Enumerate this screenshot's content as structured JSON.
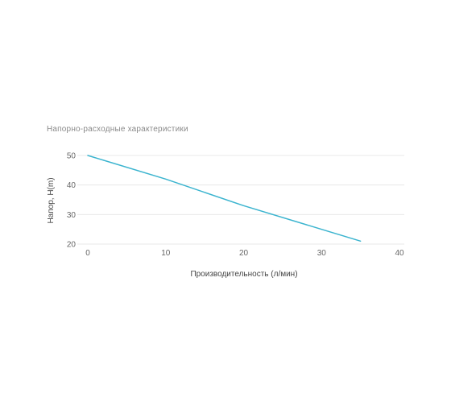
{
  "chart_data": {
    "type": "line",
    "title": "Напорно-расходные характеристики",
    "xlabel": "Производительность (л/мин)",
    "ylabel": "Напор, H(m)",
    "xlim": [
      0,
      40
    ],
    "ylim": [
      20,
      50
    ],
    "x_ticks": [
      0,
      10,
      20,
      30,
      40
    ],
    "y_ticks": [
      20,
      30,
      40,
      50
    ],
    "grid": "horizontal",
    "series": [
      {
        "color": "#3bb4cf",
        "points": [
          {
            "x": 0,
            "y": 50
          },
          {
            "x": 10,
            "y": 42
          },
          {
            "x": 20,
            "y": 33
          },
          {
            "x": 35,
            "y": 21
          }
        ]
      }
    ]
  }
}
